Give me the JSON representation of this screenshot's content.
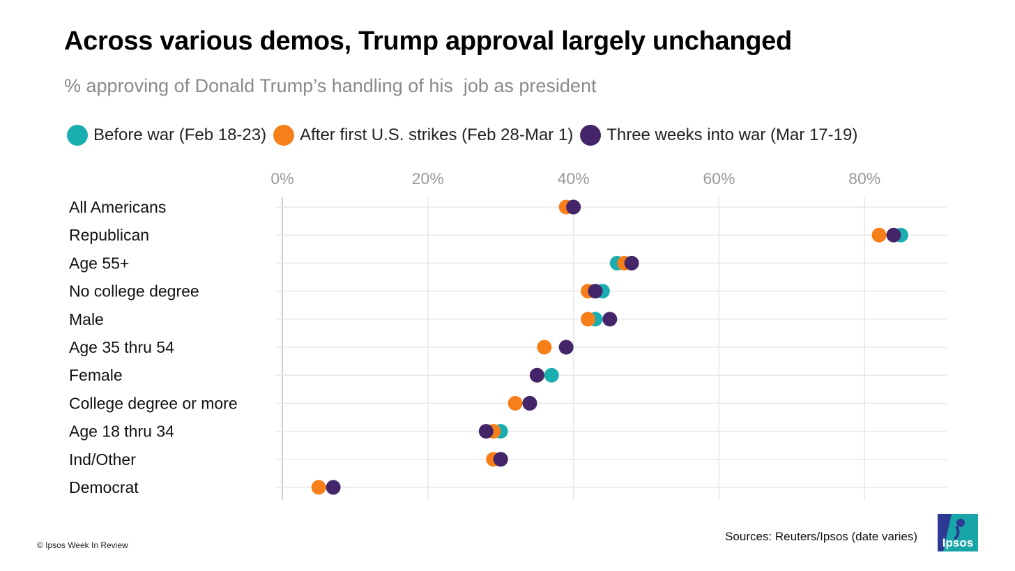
{
  "title": "Across various demos, Trump approval largely unchanged",
  "subtitle": "% approving of Donald Trump’s handling of his  job as president",
  "footer": "© Ipsos Week In Review",
  "sources": "Sources: Reuters/Ipsos (date varies)",
  "logo_text": "Ipsos",
  "colors": {
    "before": "#1aaeb0",
    "after": "#f77f1a",
    "three_weeks": "#44256a",
    "grid": "#e8e8e8",
    "tick": "#9a9a9a"
  },
  "chart_data": {
    "type": "dot",
    "xlim": [
      0,
      90
    ],
    "x_ticks": [
      0,
      20,
      40,
      60,
      80
    ],
    "x_tick_labels": [
      "0%",
      "20%",
      "40%",
      "60%",
      "80%"
    ],
    "grid": true,
    "legend_position": "top",
    "categories": [
      "All Americans",
      "Republican",
      "Age 55+",
      "No college degree",
      "Male",
      "Age 35 thru 54",
      "Female",
      "College degree or more",
      "Age 18 thru 34",
      "Ind/Other",
      "Democrat"
    ],
    "series": [
      {
        "name": "Before war (Feb 18-23)",
        "color_key": "before",
        "values": [
          40,
          85,
          46,
          44,
          43,
          39,
          37,
          34,
          30,
          30,
          7
        ]
      },
      {
        "name": "After first U.S. strikes (Feb 28-Mar 1)",
        "color_key": "after",
        "values": [
          39,
          82,
          47,
          42,
          42,
          36,
          35,
          32,
          29,
          29,
          5
        ]
      },
      {
        "name": "Three weeks into war (Mar 17-19)",
        "color_key": "three_weeks",
        "values": [
          40,
          84,
          48,
          43,
          45,
          39,
          35,
          34,
          28,
          30,
          7
        ]
      }
    ]
  }
}
